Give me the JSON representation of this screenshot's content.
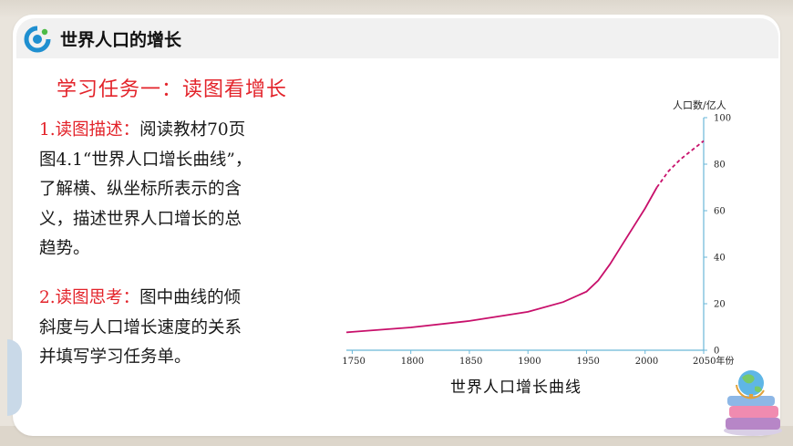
{
  "header": {
    "title": "世界人口的增长",
    "logo_icon": "logo-icon"
  },
  "task_heading": "学习任务一：读图看增长",
  "item1": {
    "label": "1.读图描述：",
    "lines": [
      "阅读教材70页",
      "图4.1“世界人口增长曲线”，",
      "了解横、纵坐标所表示的含",
      "义，描述世界人口增长的总",
      "趋势。"
    ]
  },
  "item2": {
    "label": "2.读图思考：",
    "lines": [
      "图中曲线的倾",
      "斜度与人口增长速度的关系",
      "并填写学习任务单。"
    ]
  },
  "colors": {
    "accent_red": "#e3232a",
    "curve": "#c8106b",
    "axis": "#6ab7d8"
  },
  "chart_data": {
    "type": "line",
    "title": "世界人口增长曲线",
    "ylabel": "人口数/亿人",
    "xlabel": "年份",
    "xlim": [
      1745,
      2050
    ],
    "ylim": [
      0,
      100
    ],
    "x_ticks": [
      1750,
      1800,
      1850,
      1900,
      1950,
      2000,
      2050
    ],
    "y_ticks": [
      0,
      20,
      40,
      60,
      80,
      100
    ],
    "x_tick_labels": [
      "1750",
      "1800",
      "1850",
      "1900",
      "1950",
      "2000",
      "2050年份"
    ],
    "y_tick_labels": [
      "0",
      "20",
      "40",
      "60",
      "80",
      "100"
    ],
    "grid": false,
    "series": [
      {
        "style": "solid",
        "x": [
          1745,
          1750,
          1800,
          1850,
          1900,
          1930,
          1950,
          1960,
          1970,
          1980,
          1990,
          2000,
          2010
        ],
        "values": [
          7.7,
          7.9,
          9.8,
          12.6,
          16.5,
          20.7,
          25.2,
          30,
          37,
          45,
          53,
          61,
          70
        ]
      },
      {
        "style": "dashed",
        "x": [
          2010,
          2020,
          2030,
          2040,
          2050
        ],
        "values": [
          70,
          77,
          82,
          86,
          90
        ]
      }
    ]
  }
}
